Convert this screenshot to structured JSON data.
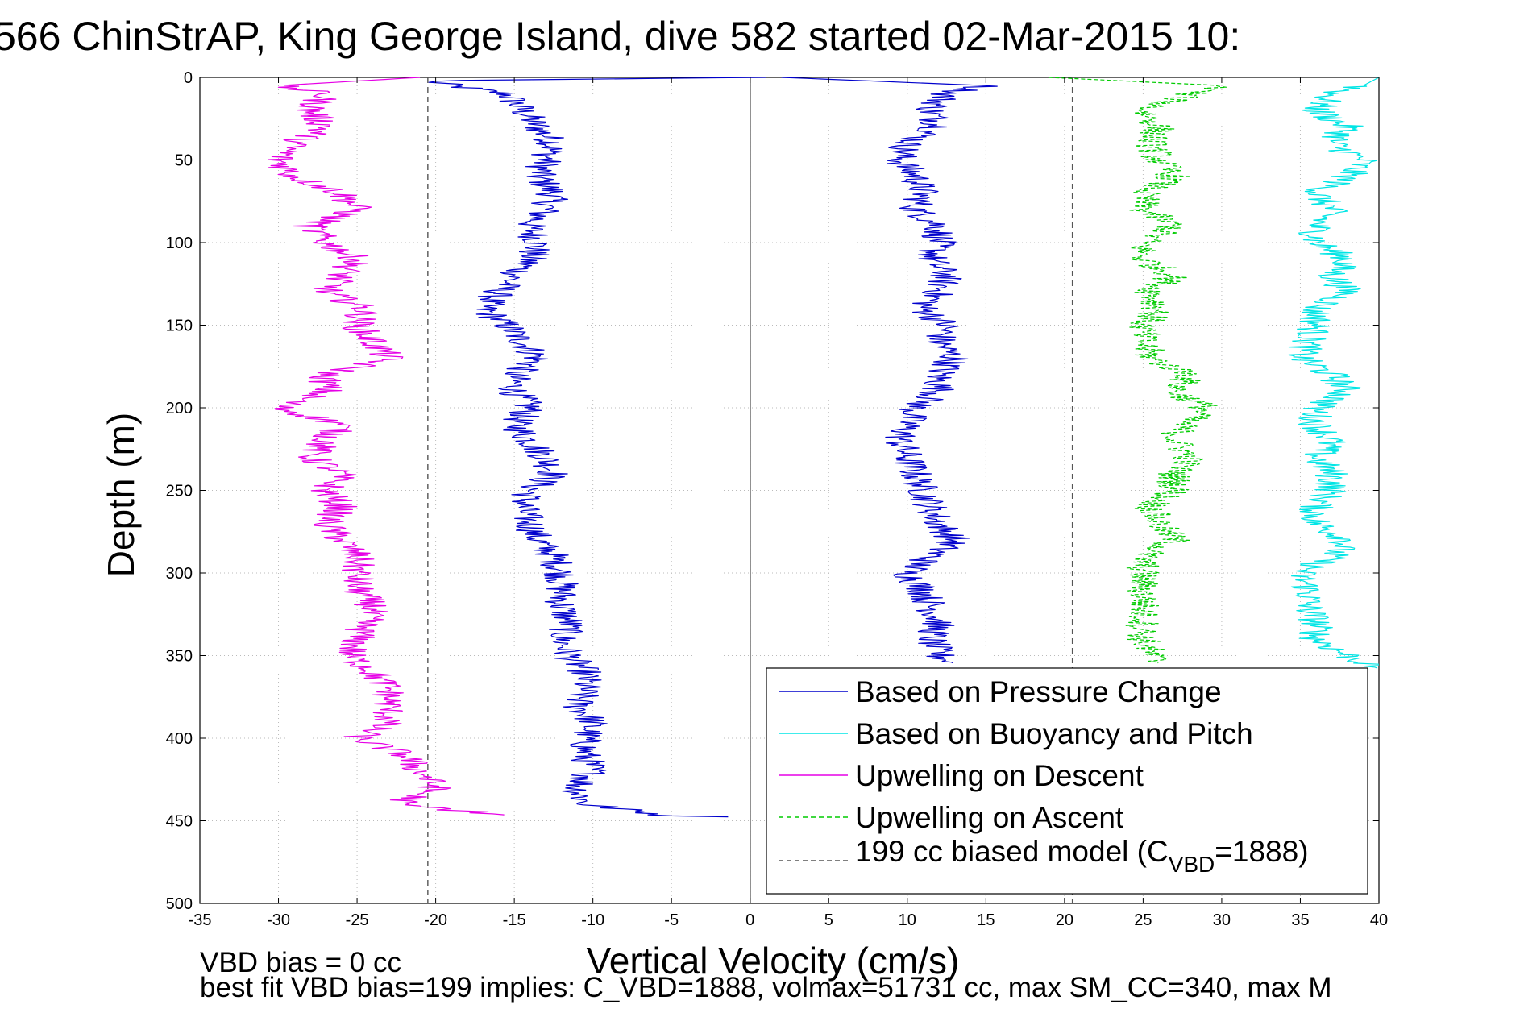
{
  "chart_data": {
    "type": "line",
    "title": "566 ChinStrAP, King George Island, dive 582 started 02-Mar-2015 10:",
    "xlabel": "Vertical Velocity (cm/s)",
    "ylabel": "Depth (m)",
    "xlim": [
      -35,
      40
    ],
    "ylim": [
      0,
      500
    ],
    "y_reversed": true,
    "grid": "dotted",
    "x_ticks": [
      -35,
      -30,
      -25,
      -20,
      -15,
      -10,
      -5,
      0,
      5,
      10,
      15,
      20,
      25,
      30,
      35,
      40
    ],
    "y_ticks": [
      0,
      50,
      100,
      150,
      200,
      250,
      300,
      350,
      400,
      450,
      500
    ],
    "legend_position": "bottom-right",
    "legend": [
      {
        "label": "Based on Pressure Change",
        "color": "#0000cc",
        "style": "solid"
      },
      {
        "label": "Based on Buoyancy and Pitch",
        "color": "#00e5e5",
        "style": "solid"
      },
      {
        "label": "Upwelling on Descent",
        "color": "#e600e6",
        "style": "solid"
      },
      {
        "label": "Upwelling on Ascent",
        "color": "#00cc00",
        "style": "dashed"
      },
      {
        "label_main": "199 cc biased model (C",
        "label_sub": "VBD",
        "label_tail": "=1888)",
        "color": "#555555",
        "style": "dashed"
      }
    ],
    "reference_lines": [
      {
        "x": 0,
        "color": "#000000",
        "style": "solid"
      },
      {
        "x": -20.5,
        "color": "#555555",
        "style": "dashed"
      },
      {
        "x": 20.5,
        "color": "#555555",
        "style": "dashed"
      }
    ],
    "series": [
      {
        "name": "Based on Pressure Change",
        "color": "#0000cc",
        "style": "solid",
        "segment": "descent",
        "depth": [
          0,
          2,
          5,
          10,
          20,
          30,
          40,
          50,
          60,
          70,
          80,
          90,
          100,
          110,
          120,
          130,
          140,
          150,
          160,
          170,
          180,
          190,
          200,
          210,
          220,
          230,
          240,
          250,
          260,
          270,
          280,
          290,
          300,
          310,
          320,
          330,
          340,
          350,
          360,
          370,
          380,
          390,
          400,
          410,
          420,
          430,
          440,
          447,
          448
        ],
        "velocity": [
          1,
          -20.5,
          -19,
          -15.5,
          -14.5,
          -13.5,
          -12.5,
          -13,
          -13.5,
          -12.5,
          -13,
          -14,
          -13.5,
          -14,
          -15,
          -16,
          -17,
          -15.5,
          -14.5,
          -13.5,
          -15,
          -15,
          -14,
          -15,
          -14,
          -13,
          -12.5,
          -14,
          -14.5,
          -14,
          -13.5,
          -12.5,
          -12,
          -12,
          -12,
          -11.5,
          -12,
          -11.5,
          -10.5,
          -10.5,
          -11,
          -10,
          -10.5,
          -10.5,
          -10,
          -11,
          -10.5,
          -5,
          1
        ]
      },
      {
        "name": "Based on Pressure Change",
        "color": "#0000cc",
        "style": "solid",
        "segment": "ascent",
        "depth": [
          0,
          5,
          10,
          20,
          30,
          40,
          50,
          60,
          70,
          80,
          90,
          100,
          110,
          120,
          130,
          140,
          150,
          160,
          170,
          180,
          190,
          200,
          210,
          220,
          230,
          240,
          250,
          260,
          270,
          280,
          290,
          300,
          310,
          320,
          330,
          340,
          350,
          355
        ],
        "velocity": [
          2,
          15,
          12.5,
          11.5,
          12,
          10,
          9.5,
          10.5,
          11,
          10.5,
          12,
          12,
          11.5,
          12.5,
          12,
          11,
          12.5,
          12,
          13,
          12,
          12,
          10.5,
          10,
          9.5,
          10,
          10.5,
          11,
          11.5,
          12,
          13,
          11.5,
          10,
          11,
          11.5,
          12,
          11.5,
          12,
          13
        ]
      },
      {
        "name": "Based on Buoyancy and Pitch",
        "color": "#00e5e5",
        "style": "solid",
        "depth": [
          0,
          5,
          10,
          20,
          30,
          40,
          50,
          60,
          70,
          80,
          90,
          100,
          110,
          120,
          130,
          140,
          150,
          160,
          170,
          180,
          190,
          200,
          210,
          220,
          230,
          240,
          250,
          260,
          270,
          280,
          290,
          300,
          310,
          320,
          330,
          340,
          350,
          358
        ],
        "velocity": [
          40,
          39,
          37,
          36,
          38,
          37,
          39,
          38,
          36,
          37,
          36,
          36,
          38,
          37,
          38,
          36,
          36,
          35.5,
          35,
          37,
          38,
          36,
          36,
          37,
          36,
          37,
          37,
          36,
          36,
          38,
          37,
          35,
          35.5,
          35.5,
          36,
          36,
          38,
          40
        ]
      },
      {
        "name": "Upwelling on Descent",
        "color": "#e600e6",
        "style": "solid",
        "depth": [
          0,
          5,
          10,
          20,
          30,
          40,
          50,
          60,
          70,
          80,
          90,
          100,
          110,
          120,
          130,
          140,
          150,
          160,
          170,
          180,
          190,
          200,
          210,
          220,
          230,
          240,
          250,
          260,
          270,
          280,
          290,
          300,
          310,
          320,
          330,
          340,
          350,
          360,
          370,
          380,
          390,
          400,
          410,
          420,
          430,
          440,
          447
        ],
        "velocity": [
          -21,
          -30,
          -27,
          -28,
          -27,
          -29,
          -30,
          -29,
          -26,
          -25,
          -28,
          -27,
          -25,
          -26,
          -27,
          -24.5,
          -25,
          -24,
          -23,
          -27,
          -27,
          -30,
          -26,
          -27,
          -28,
          -26,
          -27,
          -26,
          -27,
          -26,
          -25,
          -25,
          -25,
          -24,
          -24.5,
          -25,
          -25.5,
          -24,
          -23,
          -23,
          -23,
          -25,
          -22,
          -21,
          -20,
          -22.5,
          -15
        ]
      },
      {
        "name": "Upwelling on Ascent",
        "color": "#00cc00",
        "style": "dashed",
        "depth": [
          0,
          5,
          10,
          20,
          30,
          40,
          50,
          60,
          70,
          80,
          90,
          100,
          110,
          120,
          130,
          140,
          150,
          160,
          170,
          180,
          190,
          200,
          210,
          220,
          230,
          240,
          250,
          260,
          270,
          280,
          290,
          300,
          310,
          320,
          330,
          340,
          350,
          355
        ],
        "velocity": [
          19,
          30,
          28,
          25,
          26,
          25.5,
          26,
          27,
          25,
          25,
          27,
          25,
          25,
          27,
          25.5,
          26,
          25,
          25,
          25.5,
          28,
          27,
          29,
          27.5,
          27,
          28,
          27,
          27,
          25.5,
          26,
          27,
          25,
          25,
          25,
          25,
          25,
          25,
          25.5,
          26
        ]
      }
    ],
    "annotations": [
      "VBD bias = 0 cc",
      "best fit VBD bias=199 implies: C_VBD=1888, volmax=51731 cc, max SM_CC=340, max M"
    ]
  }
}
